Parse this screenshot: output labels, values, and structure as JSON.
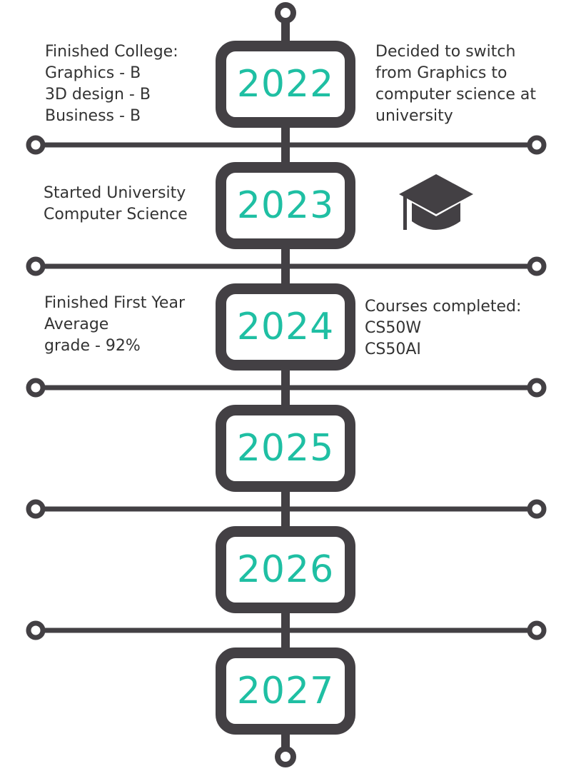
{
  "timeline": [
    {
      "year": "2022",
      "left_note": [
        "Finished College:",
        "Graphics - B",
        "3D design - B",
        "Business - B"
      ],
      "right_note": [
        "Decided to switch",
        "from Graphics to",
        "computer science at",
        "university"
      ]
    },
    {
      "year": "2023",
      "left_note": [
        "Started University",
        "Computer Science"
      ],
      "right_icon": "graduation-cap-icon"
    },
    {
      "year": "2024",
      "left_note": [
        "Finished First Year",
        "Average",
        "grade - 92%"
      ],
      "right_note": [
        "Courses completed:",
        "CS50W",
        "CS50AI"
      ]
    },
    {
      "year": "2025"
    },
    {
      "year": "2026"
    },
    {
      "year": "2027"
    }
  ],
  "colors": {
    "line": "#434044",
    "year_text": "#1fbfa3",
    "note_text": "#333333",
    "background": "#ffffff"
  }
}
